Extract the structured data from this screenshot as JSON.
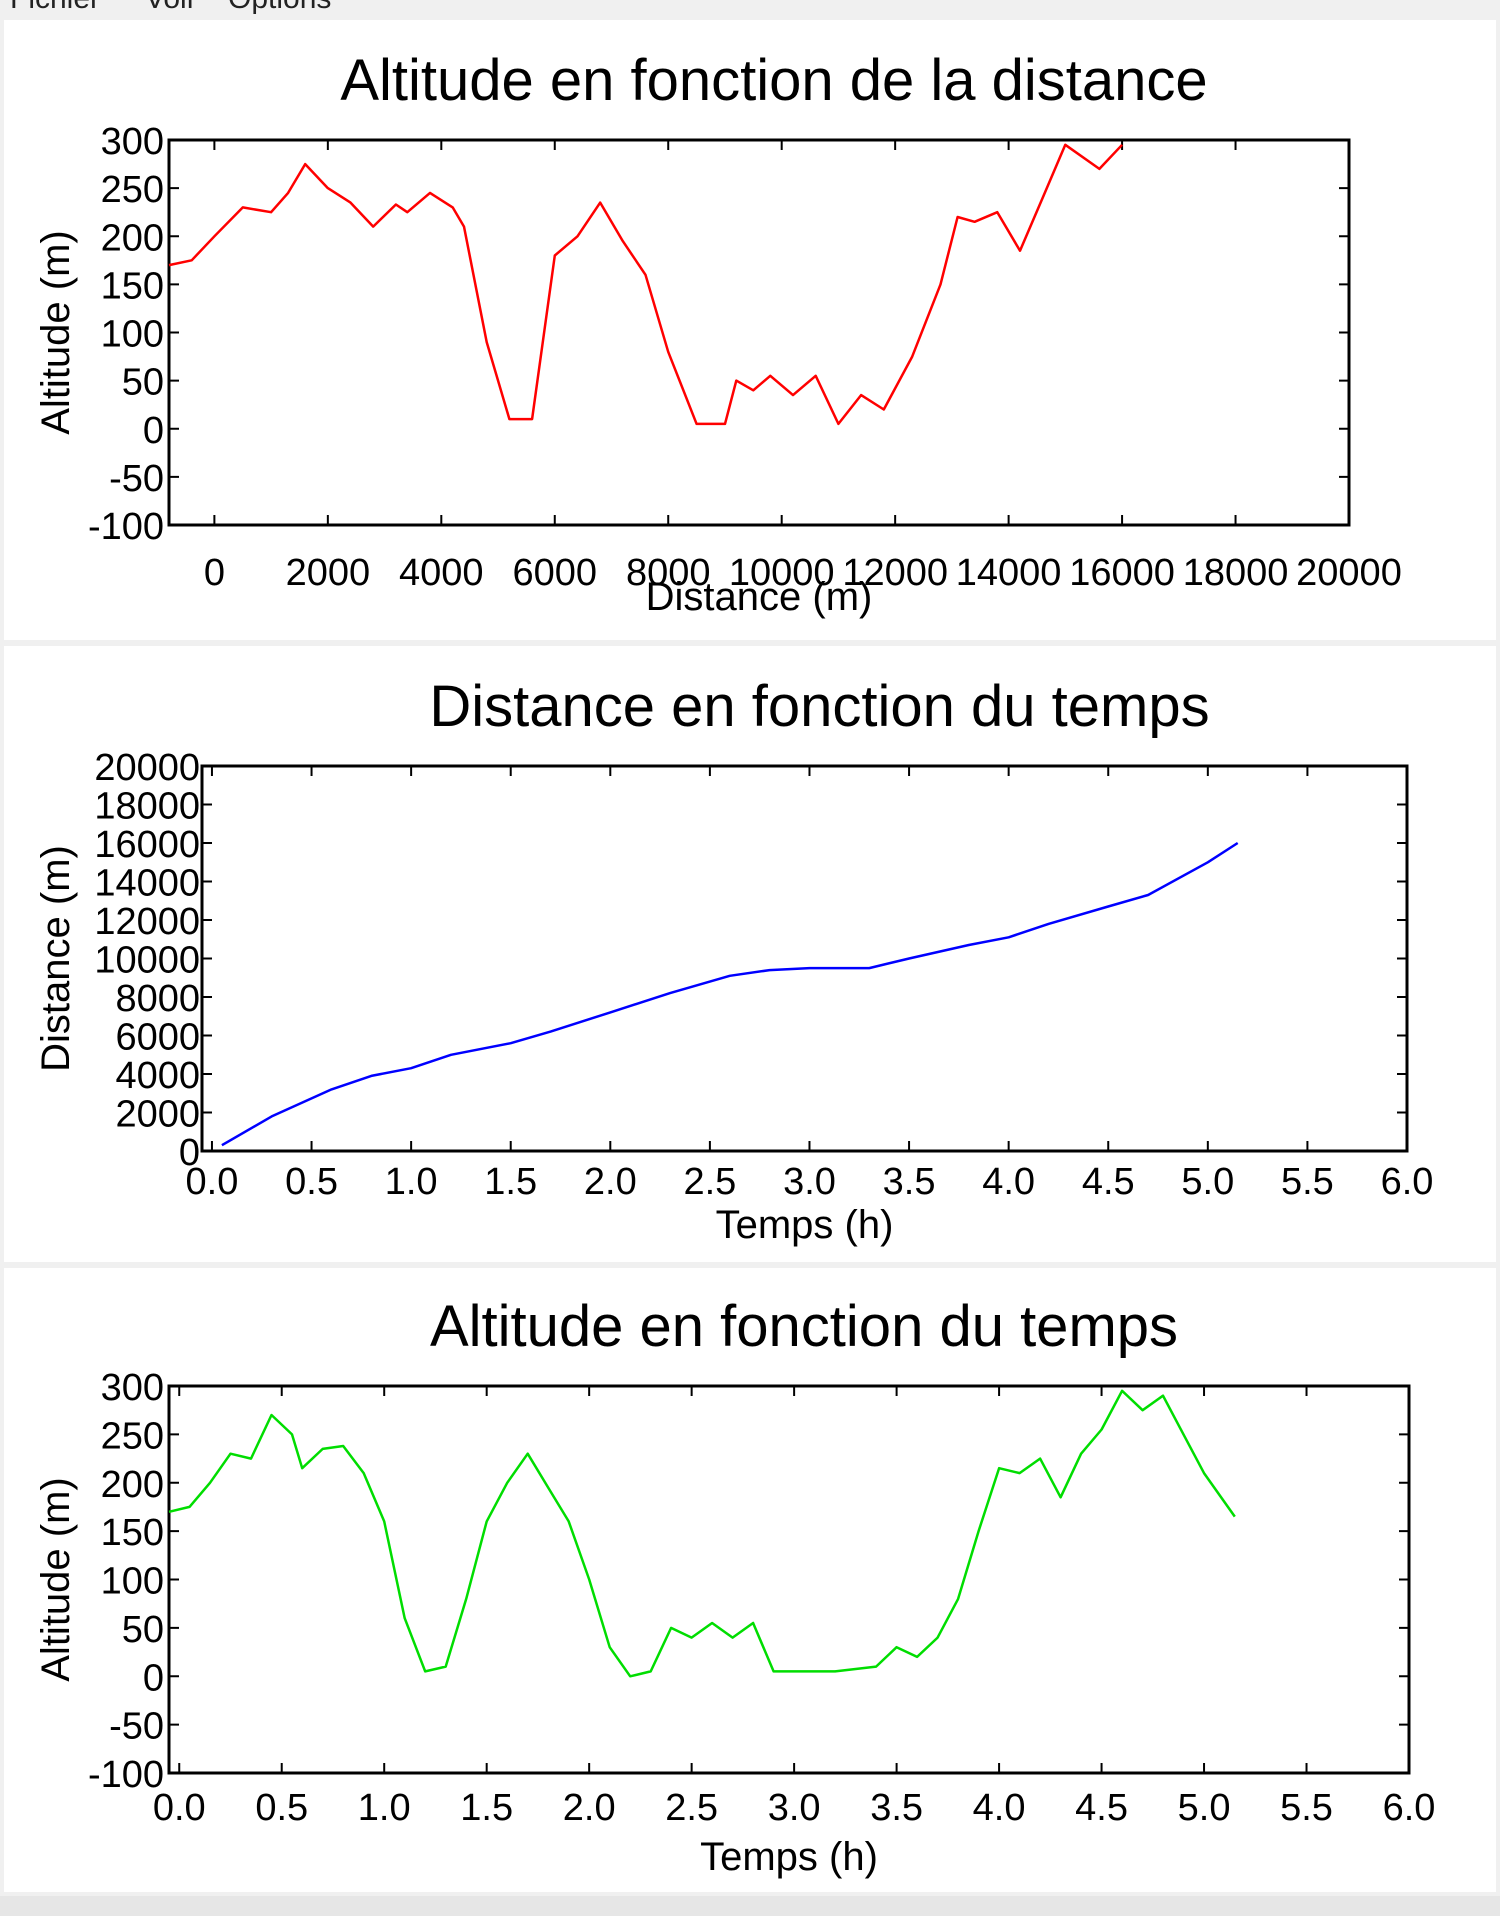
{
  "menubar": {
    "items": [
      "Fichier",
      "Voir",
      "Options"
    ]
  },
  "chart_data": [
    {
      "type": "line",
      "title": "Altitude en fonction de la distance",
      "xlabel": "Distance (m)",
      "ylabel": "Altitude (m)",
      "xlim": [
        -800,
        20000
      ],
      "ylim": [
        -100,
        300
      ],
      "xticks": [
        0,
        2000,
        4000,
        6000,
        8000,
        10000,
        12000,
        14000,
        16000,
        18000,
        20000
      ],
      "yticks": [
        -100,
        -50,
        0,
        50,
        100,
        150,
        200,
        250,
        300
      ],
      "grid": false,
      "series": [
        {
          "color": "#ff0000",
          "x": [
            -800,
            -400,
            0,
            500,
            1000,
            1300,
            1600,
            2000,
            2400,
            2800,
            3200,
            3400,
            3800,
            4200,
            4400,
            4800,
            5200,
            5600,
            6000,
            6400,
            6800,
            7200,
            7600,
            8000,
            8500,
            9000,
            9200,
            9500,
            9800,
            10200,
            10600,
            11000,
            11400,
            11800,
            12300,
            12800,
            13100,
            13400,
            13800,
            14200,
            14600,
            15000,
            15600,
            16000
          ],
          "y": [
            170,
            175,
            200,
            230,
            225,
            245,
            275,
            250,
            235,
            210,
            233,
            225,
            245,
            230,
            210,
            90,
            10,
            10,
            180,
            200,
            235,
            195,
            160,
            80,
            5,
            5,
            50,
            40,
            55,
            35,
            55,
            5,
            35,
            20,
            75,
            150,
            220,
            215,
            225,
            185,
            240,
            295,
            270,
            295
          ]
        }
      ]
    },
    {
      "type": "line",
      "title": "Distance en fonction du temps",
      "xlabel": "Temps (h)",
      "ylabel": "Distance (m)",
      "xlim": [
        -0.05,
        6.0
      ],
      "ylim": [
        0,
        20000
      ],
      "xticks": [
        0.0,
        0.5,
        1.0,
        1.5,
        2.0,
        2.5,
        3.0,
        3.5,
        4.0,
        4.5,
        5.0,
        5.5,
        6.0
      ],
      "yticks": [
        0,
        2000,
        4000,
        6000,
        8000,
        10000,
        12000,
        14000,
        16000,
        18000,
        20000
      ],
      "grid": false,
      "series": [
        {
          "color": "#0000ff",
          "x": [
            0.05,
            0.3,
            0.6,
            0.8,
            1.0,
            1.2,
            1.5,
            1.7,
            2.0,
            2.3,
            2.6,
            2.8,
            3.0,
            3.3,
            3.5,
            3.8,
            4.0,
            4.2,
            4.5,
            4.7,
            5.0,
            5.15
          ],
          "y": [
            300,
            1800,
            3200,
            3900,
            4300,
            5000,
            5600,
            6200,
            7200,
            8200,
            9100,
            9400,
            9500,
            9500,
            10000,
            10700,
            11100,
            11800,
            12700,
            13300,
            15000,
            16000
          ]
        }
      ]
    },
    {
      "type": "line",
      "title": "Altitude en fonction du temps",
      "xlabel": "Temps (h)",
      "ylabel": "Altitude (m)",
      "xlim": [
        -0.05,
        6.0
      ],
      "ylim": [
        -100,
        300
      ],
      "xticks": [
        0.0,
        0.5,
        1.0,
        1.5,
        2.0,
        2.5,
        3.0,
        3.5,
        4.0,
        4.5,
        5.0,
        5.5,
        6.0
      ],
      "yticks": [
        -100,
        -50,
        0,
        50,
        100,
        150,
        200,
        250,
        300
      ],
      "grid": false,
      "series": [
        {
          "color": "#00dd00",
          "x": [
            -0.05,
            0.05,
            0.15,
            0.25,
            0.35,
            0.45,
            0.55,
            0.6,
            0.7,
            0.8,
            0.9,
            1.0,
            1.1,
            1.2,
            1.3,
            1.4,
            1.5,
            1.6,
            1.7,
            1.8,
            1.9,
            2.0,
            2.1,
            2.2,
            2.3,
            2.4,
            2.5,
            2.6,
            2.7,
            2.8,
            2.9,
            3.0,
            3.2,
            3.4,
            3.5,
            3.6,
            3.7,
            3.8,
            3.9,
            4.0,
            4.1,
            4.2,
            4.3,
            4.4,
            4.5,
            4.6,
            4.7,
            4.8,
            4.9,
            5.0,
            5.15
          ],
          "y": [
            170,
            175,
            200,
            230,
            225,
            270,
            250,
            215,
            235,
            238,
            210,
            160,
            60,
            5,
            10,
            80,
            160,
            200,
            230,
            195,
            160,
            100,
            30,
            0,
            5,
            50,
            40,
            55,
            40,
            55,
            5,
            5,
            5,
            10,
            30,
            20,
            40,
            80,
            150,
            215,
            210,
            225,
            185,
            230,
            255,
            295,
            275,
            290,
            250,
            210,
            165
          ]
        }
      ]
    }
  ]
}
